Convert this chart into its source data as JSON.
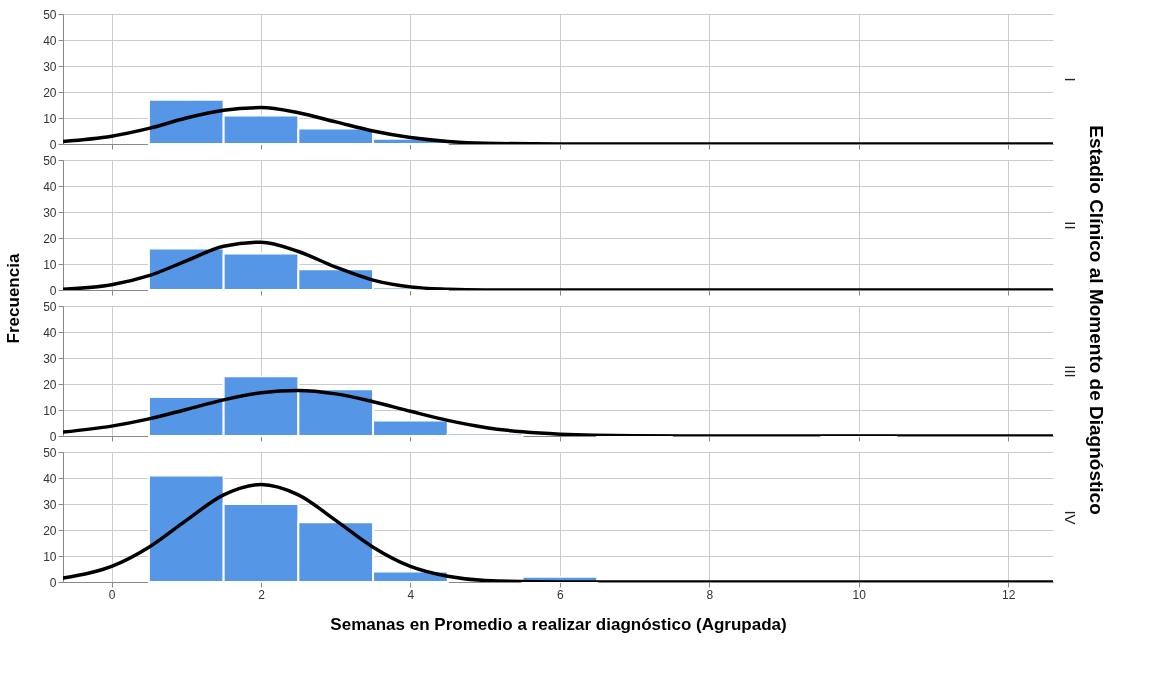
{
  "chart_data": [
    {
      "type": "histogram",
      "y2label": "I",
      "bins": [
        0.5,
        1.5,
        2.5,
        3.5,
        4.5,
        5.5,
        6.5,
        7.5,
        8.5,
        9.5,
        10.5,
        11.5,
        12.5
      ],
      "values": [
        17,
        11,
        6,
        2,
        0,
        0,
        0,
        0,
        0,
        0,
        0,
        0
      ],
      "color": "#5596e6",
      "xlim": [
        -0.65,
        12.6
      ],
      "xticks": [
        0,
        2,
        4,
        6,
        8,
        10,
        12
      ],
      "ylim": [
        0,
        50
      ],
      "yticks": [
        0,
        10,
        20,
        30,
        40,
        50
      ],
      "grid": true,
      "tick_labels": "y",
      "series": [
        {
          "type": "line",
          "color": "#000000",
          "x": [
            -0.65,
            0,
            0.5,
            1,
            1.5,
            2,
            2.5,
            3,
            3.5,
            4,
            4.5,
            5,
            6,
            12.6
          ],
          "values": [
            1,
            3,
            6,
            10,
            13,
            14,
            12,
            8.5,
            5,
            2.5,
            1,
            0.3,
            0,
            0
          ]
        }
      ]
    },
    {
      "type": "histogram",
      "y2label": "II",
      "ylabel": "Frecuencia",
      "annotations": [
        "Estadio Clínico al Momento de Diagnóstico"
      ],
      "bins": [
        0.5,
        1.5,
        2.5,
        3.5,
        4.5,
        5.5,
        6.5,
        7.5,
        8.5,
        9.5,
        10.5,
        11.5,
        12.5
      ],
      "values": [
        16,
        14,
        8,
        1,
        0,
        0,
        0,
        0,
        0,
        0,
        0,
        0
      ],
      "color": "#5596e6",
      "xlim": [
        -0.65,
        12.6
      ],
      "xticks": [
        0,
        2,
        4,
        6,
        8,
        10,
        12
      ],
      "ylim": [
        0,
        50
      ],
      "yticks": [
        0,
        10,
        20,
        30,
        40,
        50
      ],
      "grid": true,
      "tick_labels": "y",
      "series": [
        {
          "type": "line",
          "color": "#000000",
          "x": [
            -0.65,
            0,
            0.5,
            1,
            1.5,
            2,
            2.5,
            3,
            3.5,
            4,
            4.5,
            5,
            12.6
          ],
          "values": [
            0.3,
            2,
            5.5,
            11.2,
            16.8,
            18.4,
            14.8,
            8.8,
            3.8,
            1.2,
            0.3,
            0,
            0
          ]
        }
      ]
    },
    {
      "type": "histogram",
      "y2label": "III",
      "bins": [
        0.5,
        1.5,
        2.5,
        3.5,
        4.5,
        5.5,
        6.5,
        7.5,
        8.5,
        9.5,
        10.5,
        11.5,
        12.5
      ],
      "values": [
        15,
        23,
        18,
        6,
        1,
        0,
        1,
        0,
        0,
        1,
        0,
        0
      ],
      "color": "#5596e6",
      "xlim": [
        -0.65,
        12.6
      ],
      "xticks": [
        0,
        2,
        4,
        6,
        8,
        10,
        12
      ],
      "ylim": [
        0,
        50
      ],
      "yticks": [
        0,
        10,
        20,
        30,
        40,
        50
      ],
      "grid": true,
      "tick_labels": "y",
      "series": [
        {
          "type": "line",
          "color": "#000000",
          "x": [
            -0.65,
            0,
            0.5,
            1,
            1.5,
            2,
            2.5,
            3,
            3.5,
            4,
            4.5,
            5,
            5.5,
            6,
            7,
            8,
            12.6
          ],
          "values": [
            1.5,
            3.8,
            6.6,
            10.2,
            13.9,
            16.6,
            17.5,
            16.2,
            13.2,
            9.5,
            6,
            3.3,
            1.6,
            0.7,
            0.1,
            0,
            0
          ]
        }
      ]
    },
    {
      "type": "histogram",
      "y2label": "IV",
      "xlabel": "Semanas en Promedio a realizar diagnóstico (Agrupada)",
      "bins": [
        0.5,
        1.5,
        2.5,
        3.5,
        4.5,
        5.5,
        6.5,
        7.5,
        8.5,
        9.5,
        10.5,
        11.5,
        12.5
      ],
      "values": [
        41,
        30,
        23,
        4,
        0,
        2,
        0,
        0,
        0,
        0,
        0,
        0
      ],
      "color": "#5596e6",
      "xlim": [
        -0.65,
        12.6
      ],
      "xticks": [
        0,
        2,
        4,
        6,
        8,
        10,
        12
      ],
      "ylim": [
        0,
        50
      ],
      "yticks": [
        0,
        10,
        20,
        30,
        40,
        50
      ],
      "grid": true,
      "series": [
        {
          "type": "line",
          "color": "#000000",
          "x": [
            -0.65,
            0,
            0.5,
            1,
            1.5,
            2,
            2.5,
            3,
            3.5,
            4,
            4.5,
            5,
            6,
            12.6
          ],
          "values": [
            1.5,
            6,
            13.4,
            23.7,
            33.5,
            37.5,
            33.5,
            23.7,
            13.4,
            6,
            2.2,
            0.6,
            0,
            0
          ]
        }
      ]
    }
  ]
}
